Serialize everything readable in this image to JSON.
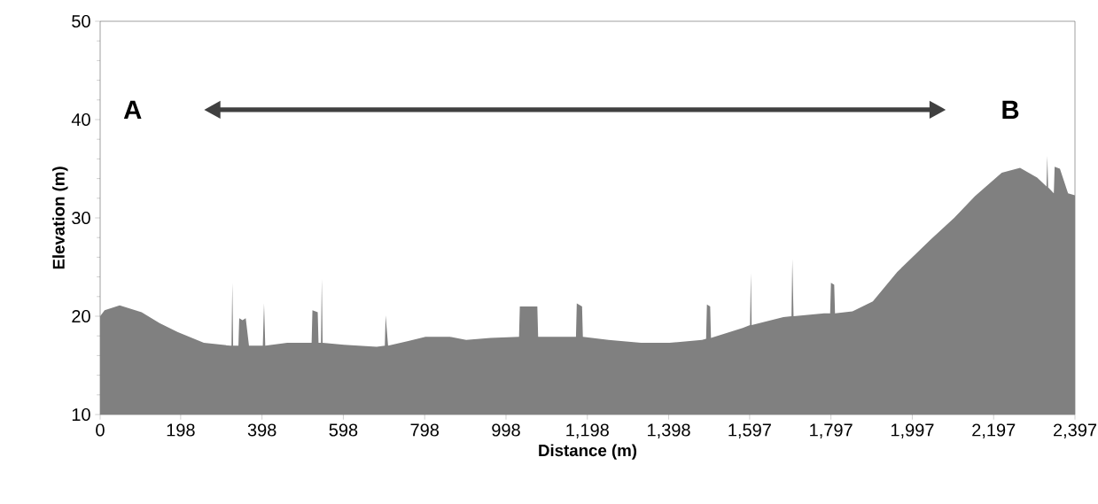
{
  "chart_data": {
    "type": "area",
    "xlabel": "Distance (m)",
    "ylabel": "Elevation (m)",
    "color": "#808080",
    "x": [
      0,
      11,
      48,
      102,
      146,
      190,
      255,
      320,
      323,
      325,
      327,
      340,
      342,
      350,
      358,
      366,
      400,
      403,
      406,
      460,
      520,
      522,
      535,
      537,
      543,
      545,
      547,
      600,
      680,
      700,
      702,
      708,
      760,
      800,
      860,
      900,
      960,
      1030,
      1032,
      1050,
      1075,
      1077,
      1120,
      1170,
      1172,
      1185,
      1187,
      1250,
      1330,
      1400,
      1480,
      1490,
      1492,
      1500,
      1502,
      1580,
      1598,
      1600,
      1602,
      1680,
      1700,
      1702,
      1705,
      1780,
      1795,
      1797,
      1805,
      1807,
      1850,
      1900,
      1960,
      2042,
      2100,
      2151,
      2217,
      2262,
      2304,
      2327,
      2329,
      2331,
      2345,
      2347,
      2360,
      2380,
      2397
    ],
    "values": [
      20.0,
      20.6,
      21.1,
      20.4,
      19.3,
      18.4,
      17.3,
      17.0,
      17.0,
      23.4,
      17.0,
      17.0,
      19.8,
      19.6,
      19.8,
      17.0,
      17.0,
      21.3,
      17.0,
      17.3,
      17.3,
      20.6,
      20.4,
      17.3,
      17.3,
      23.8,
      17.3,
      17.1,
      16.9,
      17.0,
      20.1,
      17.0,
      17.5,
      17.9,
      17.9,
      17.6,
      17.8,
      17.9,
      21.0,
      21.0,
      21.0,
      17.9,
      17.9,
      17.9,
      21.3,
      21.0,
      17.9,
      17.6,
      17.3,
      17.3,
      17.6,
      17.7,
      21.2,
      21.0,
      17.8,
      18.8,
      19.1,
      24.4,
      19.1,
      19.9,
      20.0,
      25.8,
      20.0,
      20.3,
      20.3,
      23.4,
      23.2,
      20.3,
      20.5,
      21.5,
      24.5,
      27.8,
      30.0,
      32.2,
      34.6,
      35.1,
      34.1,
      33.2,
      36.3,
      33.1,
      32.5,
      35.2,
      35.0,
      32.5,
      32.3
    ],
    "xlim": [
      0,
      2397
    ],
    "ylim": [
      10,
      50
    ],
    "xticks": [
      0,
      198,
      398,
      598,
      798,
      998,
      {
        "value": 1198,
        "label": "1,198"
      },
      {
        "value": 1398,
        "label": "1,398"
      },
      {
        "value": 1597,
        "label": "1,597"
      },
      {
        "value": 1797,
        "label": "1,797"
      },
      {
        "value": 1997,
        "label": "1,997"
      },
      {
        "value": 2197,
        "label": "2,197"
      },
      {
        "value": 2397,
        "label": "2,397"
      }
    ],
    "yticks": [
      10,
      20,
      30,
      40,
      50
    ],
    "annotations": [
      "A",
      "B"
    ]
  }
}
